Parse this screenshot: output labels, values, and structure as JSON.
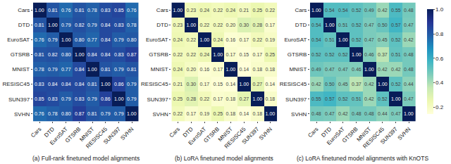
{
  "chart_data": [
    {
      "type": "heatmap",
      "title": "(a) Full-rank finetuned model alignments",
      "categories": [
        "Cars",
        "DTD",
        "EuroSAT",
        "GTSRB",
        "MNIST",
        "RESISC45",
        "SUN397",
        "SVHN"
      ],
      "cells": [
        [
          1,
          0.81,
          0.76,
          0.81,
          0.78,
          0.83,
          0.85,
          0.76
        ],
        [
          0.81,
          1,
          0.79,
          0.82,
          0.79,
          0.84,
          0.83,
          0.78
        ],
        [
          0.76,
          0.79,
          1,
          0.8,
          0.77,
          0.84,
          0.79,
          0.8
        ],
        [
          0.81,
          0.82,
          0.8,
          1,
          0.84,
          0.84,
          0.83,
          0.87
        ],
        [
          0.78,
          0.79,
          0.77,
          0.84,
          1,
          0.81,
          0.79,
          0.81
        ],
        [
          0.83,
          0.84,
          0.84,
          0.84,
          0.81,
          1,
          0.86,
          0.79
        ],
        [
          0.85,
          0.83,
          0.79,
          0.83,
          0.79,
          0.86,
          1,
          0.79
        ],
        [
          0.76,
          0.78,
          0.8,
          0.87,
          0.81,
          0.79,
          0.79,
          1
        ]
      ],
      "cell_labels": [
        [
          "1.00",
          "0.81",
          "0.76",
          "0.81",
          "0.78",
          "0.83",
          "0.85",
          "0.76"
        ],
        [
          "0.81",
          "1.00",
          "0.79",
          "0.82",
          "0.79",
          "0.84",
          "0.83",
          "0.78"
        ],
        [
          "0.76",
          "0.79",
          "1.00",
          "0.80",
          "0.77",
          "0.84",
          "0.79",
          "0.80"
        ],
        [
          "0.81",
          "0.82",
          "0.80",
          "1.00",
          "0.84",
          "0.84",
          "0.83",
          "0.87"
        ],
        [
          "0.78",
          "0.79",
          "0.77",
          "0.84",
          "1.00",
          "0.81",
          "0.79",
          "0.81"
        ],
        [
          "0.83",
          "0.84",
          "0.84",
          "0.84",
          "0.81",
          "1.00",
          "0.86",
          "0.79"
        ],
        [
          "0.85",
          "0.83",
          "0.79",
          "0.83",
          "0.79",
          "0.86",
          "1.00",
          "0.79"
        ],
        [
          "0.76",
          "0.78",
          "0.80",
          "0.87",
          "0.81",
          "0.79",
          "0.79",
          "1.00"
        ]
      ]
    },
    {
      "type": "heatmap",
      "title": "(b) LoRA finetuned model alignments",
      "categories": [
        "Cars",
        "DTD",
        "EuroSAT",
        "GTSRB",
        "MNIST",
        "RESISC45",
        "SUN397",
        "SVHN"
      ],
      "cells": [
        [
          1,
          0.23,
          0.24,
          0.22,
          0.24,
          0.21,
          0.25,
          0.22
        ],
        [
          0.23,
          1,
          0.22,
          0.22,
          0.2,
          0.3,
          0.28,
          0.17
        ],
        [
          0.24,
          0.22,
          1,
          0.24,
          0.16,
          0.17,
          0.22,
          0.19
        ],
        [
          0.22,
          0.22,
          0.24,
          1,
          0.17,
          0.15,
          0.17,
          0.25
        ],
        [
          0.24,
          0.2,
          0.16,
          0.17,
          1,
          0.14,
          0.18,
          0.18
        ],
        [
          0.21,
          0.3,
          0.17,
          0.15,
          0.14,
          1,
          0.27,
          0.14
        ],
        [
          0.25,
          0.28,
          0.22,
          0.17,
          0.18,
          0.27,
          1,
          0.18
        ],
        [
          0.22,
          0.17,
          0.19,
          0.25,
          0.18,
          0.14,
          0.18,
          1
        ]
      ],
      "cell_labels": [
        [
          "1.00",
          "0.23",
          "0.24",
          "0.22",
          "0.24",
          "0.21",
          "0.25",
          "0.22"
        ],
        [
          "0.23",
          "1.00",
          "0.22",
          "0.22",
          "0.20",
          "0.30",
          "0.28",
          "0.17"
        ],
        [
          "0.24",
          "0.22",
          "1.00",
          "0.24",
          "0.16",
          "0.17",
          "0.22",
          "0.19"
        ],
        [
          "0.22",
          "0.22",
          "0.24",
          "1.00",
          "0.17",
          "0.15",
          "0.17",
          "0.25"
        ],
        [
          "0.24",
          "0.20",
          "0.16",
          "0.17",
          "1.00",
          "0.14",
          "0.18",
          "0.18"
        ],
        [
          "0.21",
          "0.30",
          "0.17",
          "0.15",
          "0.14",
          "1.00",
          "0.27",
          "0.14"
        ],
        [
          "0.25",
          "0.28",
          "0.22",
          "0.17",
          "0.18",
          "0.27",
          "1.00",
          "0.18"
        ],
        [
          "0.22",
          "0.17",
          "0.19",
          "0.25",
          "0.18",
          "0.14",
          "0.18",
          "1.00"
        ]
      ]
    },
    {
      "type": "heatmap",
      "title": "(c) LoRA finetuned model alignments with KnOTS",
      "categories": [
        "Cars",
        "DTD",
        "EuroSAT",
        "GTSRB",
        "MNIST",
        "RESISC45",
        "SUN397",
        "SVHN"
      ],
      "cells": [
        [
          1,
          0.54,
          0.54,
          0.52,
          0.49,
          0.42,
          0.55,
          0.48
        ],
        [
          0.54,
          1,
          0.51,
          0.52,
          0.47,
          0.5,
          0.57,
          0.47
        ],
        [
          0.54,
          0.51,
          1,
          0.52,
          0.47,
          0.45,
          0.52,
          0.42
        ],
        [
          0.52,
          0.52,
          0.52,
          1,
          0.46,
          0.37,
          0.51,
          0.48
        ],
        [
          0.49,
          0.47,
          0.47,
          0.46,
          1,
          0.42,
          0.42,
          0.48
        ],
        [
          0.42,
          0.5,
          0.45,
          0.37,
          0.42,
          1,
          0.52,
          0.44
        ],
        [
          0.55,
          0.57,
          0.52,
          0.51,
          0.42,
          0.52,
          1,
          0.47
        ],
        [
          0.48,
          0.47,
          0.42,
          0.48,
          0.48,
          0.44,
          0.47,
          1
        ]
      ],
      "cell_labels": [
        [
          "1.00",
          "0.54",
          "0.54",
          "0.52",
          "0.49",
          "0.42",
          "0.55",
          "0.48"
        ],
        [
          "0.54",
          "1.00",
          "0.51",
          "0.52",
          "0.47",
          "0.50",
          "0.57",
          "0.47"
        ],
        [
          "0.54",
          "0.51",
          "1.00",
          "0.52",
          "0.47",
          "0.45",
          "0.52",
          "0.42"
        ],
        [
          "0.52",
          "0.52",
          "0.52",
          "1.00",
          "0.46",
          "0.37",
          "0.51",
          "0.48"
        ],
        [
          "0.49",
          "0.47",
          "0.47",
          "0.46",
          "1.00",
          "0.42",
          "0.42",
          "0.48"
        ],
        [
          "0.42",
          "0.50",
          "0.45",
          "0.37",
          "0.42",
          "1.00",
          "0.52",
          "0.44"
        ],
        [
          "0.55",
          "0.57",
          "0.52",
          "0.51",
          "0.42",
          "0.52",
          "1.00",
          "0.47"
        ],
        [
          "0.48",
          "0.47",
          "0.42",
          "0.48",
          "0.48",
          "0.44",
          "0.47",
          "1.00"
        ]
      ],
      "colorbar": {
        "range": [
          0.14,
          1
        ],
        "ticks": [
          0.2,
          0.4,
          0.6,
          0.8,
          {
            "value": 1,
            "label": "1.0"
          }
        ]
      }
    }
  ]
}
